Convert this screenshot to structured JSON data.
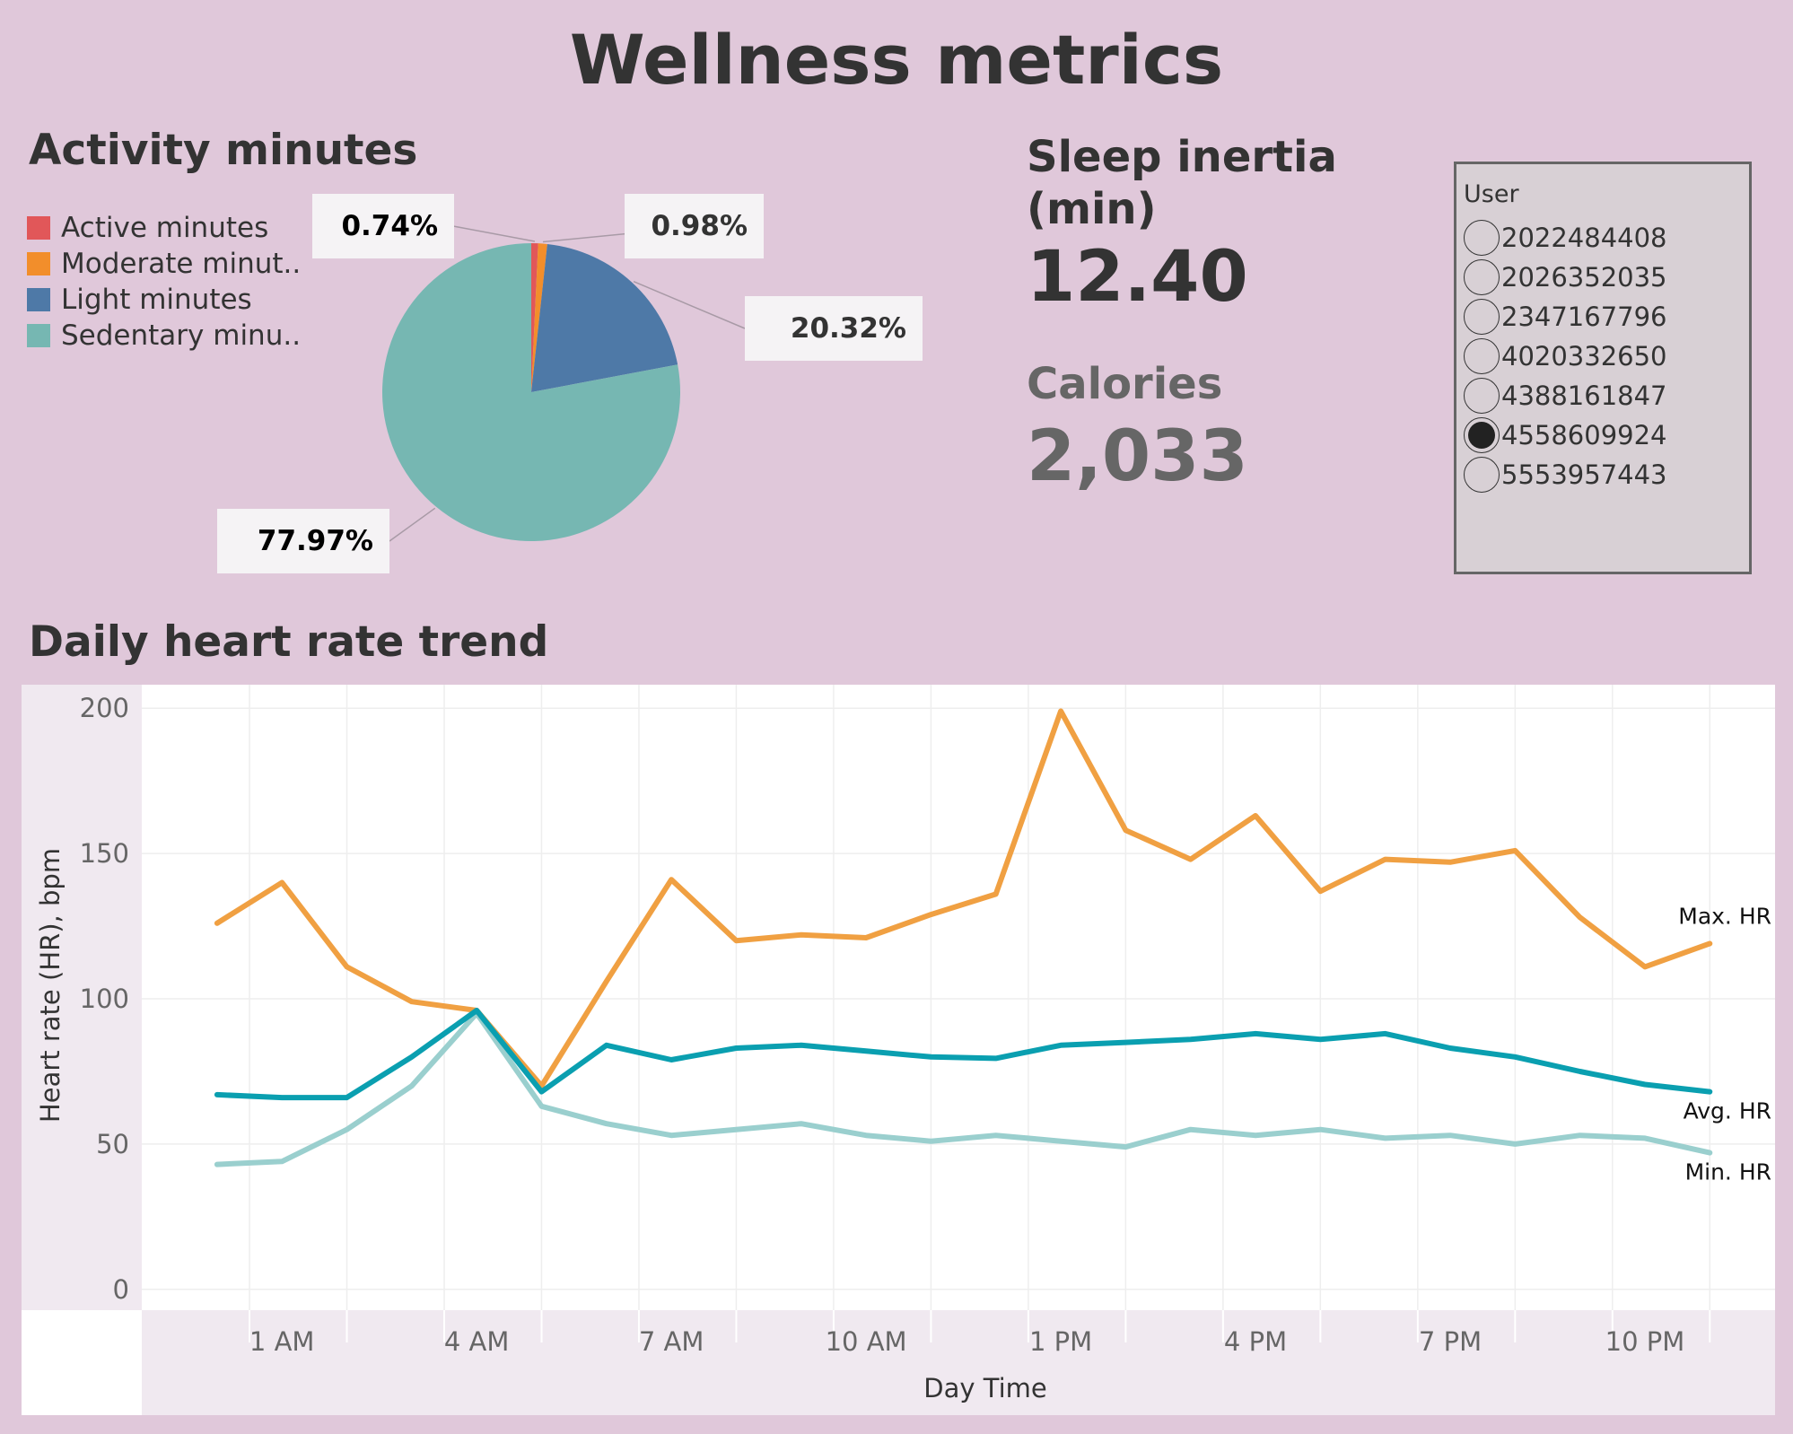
{
  "title": "Wellness metrics",
  "activity": {
    "title": "Activity minutes",
    "legend": [
      {
        "label": "Active minutes",
        "color": "#e15759"
      },
      {
        "label": "Moderate minut..",
        "color": "#f28e2b"
      },
      {
        "label": "Light minutes",
        "color": "#4e79a7"
      },
      {
        "label": "Sedentary minu..",
        "color": "#76b7b2"
      }
    ]
  },
  "kpi": {
    "sleep_label": "Sleep inertia (min)",
    "sleep_value": "12.40",
    "calories_label": "Calories",
    "calories_value": "2,033"
  },
  "user_filter": {
    "label": "User",
    "options": [
      "2022484408",
      "2026352035",
      "2347167796",
      "4020332650",
      "4388161847",
      "4558609924",
      "5553957443"
    ],
    "selected": "4558609924"
  },
  "heart": {
    "title": "Daily heart rate trend"
  },
  "chart_data": [
    {
      "type": "pie",
      "title": "Activity minutes",
      "categories": [
        "Active minutes",
        "Moderate minut..",
        "Light minutes",
        "Sedentary minu.."
      ],
      "values": [
        0.74,
        0.98,
        20.32,
        77.97
      ],
      "data_labels": [
        "0.74%",
        "0.98%",
        "20.32%",
        "77.97%"
      ],
      "colors": [
        "#e15759",
        "#f28e2b",
        "#4e79a7",
        "#76b7b2"
      ],
      "legend": "left"
    },
    {
      "type": "line",
      "title": "Daily heart rate trend",
      "xlabel": "Day Time",
      "ylabel": "Heart rate (HR), bpm",
      "x": [
        0,
        1,
        2,
        3,
        4,
        5,
        6,
        7,
        8,
        9,
        10,
        11,
        12,
        13,
        14,
        15,
        16,
        17,
        18,
        19,
        20,
        21,
        22,
        23
      ],
      "xticks": [
        {
          "x": 1,
          "label": "1 AM"
        },
        {
          "x": 4,
          "label": "4 AM"
        },
        {
          "x": 7,
          "label": "7 AM"
        },
        {
          "x": 10,
          "label": "10 AM"
        },
        {
          "x": 13,
          "label": "1 PM"
        },
        {
          "x": 16,
          "label": "4 PM"
        },
        {
          "x": 19,
          "label": "7 PM"
        },
        {
          "x": 22,
          "label": "10 PM"
        }
      ],
      "xlim": [
        -0.8,
        23.95
      ],
      "yticks": [
        0,
        50,
        100,
        150,
        200
      ],
      "ylim": [
        -5,
        205
      ],
      "grid": true,
      "series": [
        {
          "name": "Max. HR",
          "color": "#f0a042",
          "values": [
            126,
            140,
            111,
            99,
            96,
            70,
            106,
            141,
            120,
            122,
            121,
            129,
            136,
            199,
            158,
            148,
            163,
            137,
            148,
            147,
            151,
            128,
            111,
            119
          ]
        },
        {
          "name": "Avg. HR",
          "color": "#0a9fb0",
          "values": [
            67,
            66,
            66,
            80,
            96,
            68,
            84,
            79,
            83,
            84,
            82,
            80,
            79.5,
            84,
            85,
            86,
            88,
            86,
            88,
            83,
            80,
            75,
            70.5,
            68
          ]
        },
        {
          "name": "Min. HR",
          "color": "#9acfce",
          "values": [
            43,
            44,
            55,
            70,
            95,
            63,
            57,
            53,
            55,
            57,
            53,
            51,
            53,
            51,
            49,
            55,
            53,
            55,
            52,
            53,
            50,
            53,
            52,
            47
          ]
        }
      ]
    }
  ]
}
